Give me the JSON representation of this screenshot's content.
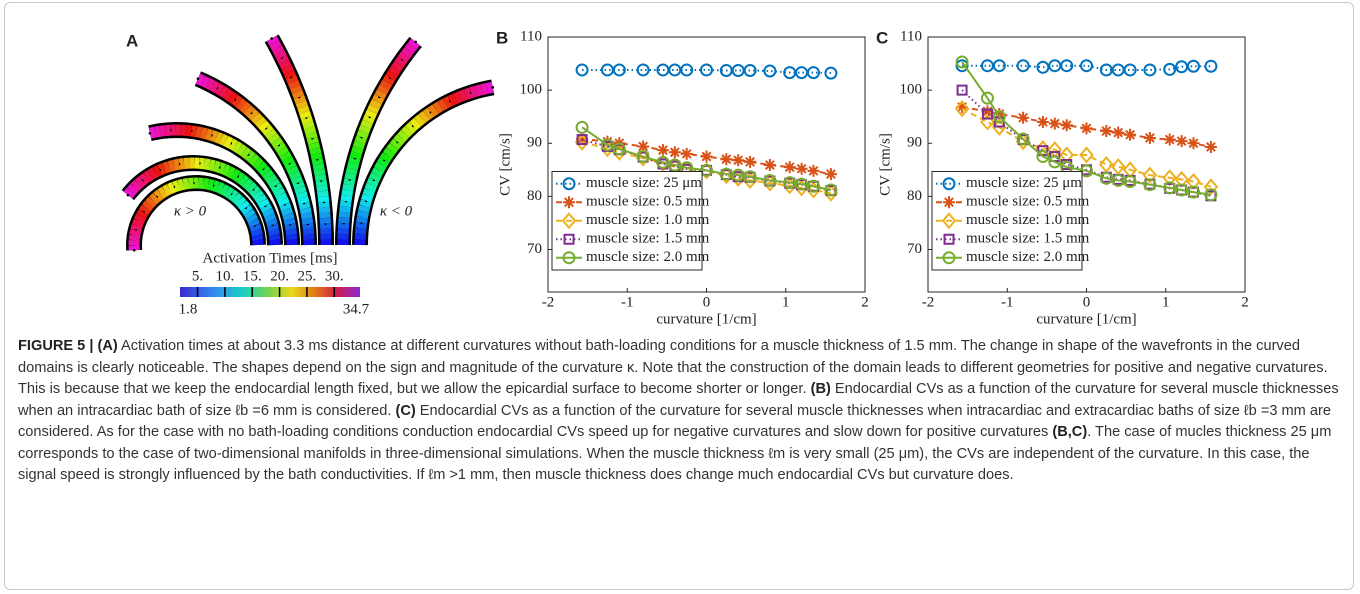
{
  "panel_a": {
    "label": "A",
    "kappa_pos": "κ > 0",
    "kappa_neg": "κ < 0",
    "colorbar": {
      "title": "Activation Times [ms]",
      "lim": [
        1.8,
        34.7
      ],
      "ticks": [
        {
          "value": 5,
          "label": "5."
        },
        {
          "value": 10,
          "label": "10."
        },
        {
          "value": 15,
          "label": "15."
        },
        {
          "value": 20,
          "label": "20."
        },
        {
          "value": 25,
          "label": "25."
        },
        {
          "value": 30,
          "label": "30."
        }
      ]
    }
  },
  "chart_data": [
    {
      "type": "line",
      "panel": "B",
      "xlabel": "curvature [1/cm]",
      "ylabel": "CV [cm/s]",
      "xlim": [
        -2,
        2
      ],
      "xticks": [
        -2,
        -1,
        0,
        1,
        2
      ],
      "ylim": [
        62,
        110
      ],
      "yticks": [
        70,
        80,
        90,
        100,
        110
      ],
      "legend": "lower left",
      "x": [
        -1.57,
        -1.25,
        -1.1,
        -0.8,
        -0.55,
        -0.4,
        -0.25,
        0,
        0.25,
        0.4,
        0.55,
        0.8,
        1.05,
        1.2,
        1.35,
        1.57
      ],
      "series": [
        {
          "name": "muscle size: 25 μm",
          "color": "#0072bd",
          "marker": "circle",
          "dash": "dotted",
          "values": [
            103.8,
            103.8,
            103.8,
            103.8,
            103.8,
            103.8,
            103.8,
            103.8,
            103.7,
            103.7,
            103.7,
            103.6,
            103.3,
            103.3,
            103.3,
            103.2
          ]
        },
        {
          "name": "muscle size: 0.5 mm",
          "color": "#d95319",
          "marker": "star",
          "dash": "dashed",
          "values": [
            90.8,
            90.3,
            90,
            89.4,
            88.7,
            88.3,
            88,
            87.5,
            87,
            86.8,
            86.5,
            85.9,
            85.5,
            85.2,
            84.8,
            84.2
          ]
        },
        {
          "name": "muscle size: 1.0 mm",
          "color": "#edb120",
          "marker": "diamond",
          "dash": "dashed",
          "values": [
            90.2,
            89,
            88.3,
            87.2,
            86.2,
            85.6,
            85,
            84.8,
            83.9,
            83.4,
            83,
            82.5,
            82,
            81.6,
            81.2,
            80.6
          ]
        },
        {
          "name": "muscle size: 1.5 mm",
          "color": "#7e2f8e",
          "marker": "square",
          "dash": "dotted",
          "values": [
            90.7,
            89.4,
            88.8,
            87.4,
            86.1,
            85.7,
            85.1,
            84.9,
            84.1,
            83.7,
            83.6,
            82.9,
            82.5,
            82.2,
            81.9,
            81.1
          ]
        },
        {
          "name": "muscle size: 2.0 mm",
          "color": "#77ac30",
          "marker": "circle",
          "dash": "solid",
          "values": [
            93,
            89.7,
            88.9,
            87.5,
            86.4,
            85.9,
            85.4,
            84.9,
            84.2,
            84,
            83.7,
            83,
            82.6,
            82.3,
            81.9,
            81.2
          ]
        }
      ]
    },
    {
      "type": "line",
      "panel": "C",
      "xlabel": "curvature [1/cm]",
      "ylabel": "CV [cm/s]",
      "xlim": [
        -2,
        2
      ],
      "xticks": [
        -2,
        -1,
        0,
        1,
        2
      ],
      "ylim": [
        62,
        110
      ],
      "yticks": [
        70,
        80,
        90,
        100,
        110
      ],
      "legend": "lower left",
      "x": [
        -1.57,
        -1.25,
        -1.1,
        -0.8,
        -0.55,
        -0.4,
        -0.25,
        0,
        0.25,
        0.4,
        0.55,
        0.8,
        1.05,
        1.2,
        1.35,
        1.57
      ],
      "series": [
        {
          "name": "muscle size: 25 μm",
          "color": "#0072bd",
          "marker": "circle",
          "dash": "dotted",
          "values": [
            104.6,
            104.6,
            104.6,
            104.6,
            104.3,
            104.6,
            104.6,
            104.6,
            103.8,
            103.8,
            103.8,
            103.8,
            103.9,
            104.4,
            104.5,
            104.5
          ]
        },
        {
          "name": "muscle size: 0.5 mm",
          "color": "#d95319",
          "marker": "star",
          "dash": "dashed",
          "values": [
            96.8,
            96,
            95.5,
            94.8,
            94,
            93.7,
            93.4,
            92.8,
            92.3,
            92,
            91.6,
            91,
            90.7,
            90.4,
            90,
            89.3
          ]
        },
        {
          "name": "muscle size: 1.0 mm",
          "color": "#edb120",
          "marker": "diamond",
          "dash": "dashed",
          "values": [
            96.5,
            94,
            93,
            90.3,
            89,
            88.8,
            87.8,
            87.8,
            86,
            85.6,
            85,
            84,
            83.5,
            83.2,
            82.8,
            81.8
          ]
        },
        {
          "name": "muscle size: 1.5 mm",
          "color": "#7e2f8e",
          "marker": "square",
          "dash": "dotted",
          "values": [
            100,
            95.5,
            94,
            90.7,
            88.6,
            87.5,
            86,
            85,
            83.6,
            83.2,
            83,
            82.3,
            81.5,
            81.2,
            80.8,
            80.1
          ]
        },
        {
          "name": "muscle size: 2.0 mm",
          "color": "#77ac30",
          "marker": "circle",
          "dash": "solid",
          "values": [
            105.3,
            98.5,
            95,
            90.8,
            87.5,
            86.5,
            85.5,
            84.8,
            83.4,
            83,
            82.8,
            82.2,
            81.6,
            81.2,
            80.8,
            80.3
          ]
        }
      ]
    }
  ],
  "caption": {
    "runs": [
      {
        "text": "FIGURE 5 | (A)",
        "bold": true
      },
      {
        "text": " Activation times at about 3.3 ms distance at different curvatures without bath-loading conditions for a muscle thickness of 1.5 mm. The change in shape of the wavefronts in the curved domains is clearly noticeable. The shapes depend on the sign and magnitude of the curvature κ. Note that the construction of the domain leads to different geometries for positive and negative curvatures. This is because that we keep the endocardial length fixed, but we allow the epicardial surface to become shorter or longer. ",
        "bold": false
      },
      {
        "text": "(B)",
        "bold": true
      },
      {
        "text": " Endocardial CVs as a function of the curvature for several muscle thicknesses when an intracardiac bath of size ℓb =6 mm is considered. ",
        "bold": false
      },
      {
        "text": "(C)",
        "bold": true
      },
      {
        "text": " Endocardial CVs as a function of the curvature for several muscle thicknesses when intracardiac and extracardiac baths of size ℓb =3 mm are considered. As for the case with no bath-loading conditions conduction endocardial CVs speed up for negative curvatures and slow down for positive curvatures ",
        "bold": false
      },
      {
        "text": "(B,C)",
        "bold": true
      },
      {
        "text": ". The case of mucles thickness 25 μm corresponds to the case of two-dimensional manifolds in three-dimensional simulations. When the muscle thickness ℓm is very small (25 μm), the CVs are independent of the curvature. In this case, the signal speed is strongly influenced by the bath conductivities. If ℓm >1 mm, then muscle thickness does change much endocardial CVs but curvature does.",
        "bold": false
      }
    ]
  }
}
